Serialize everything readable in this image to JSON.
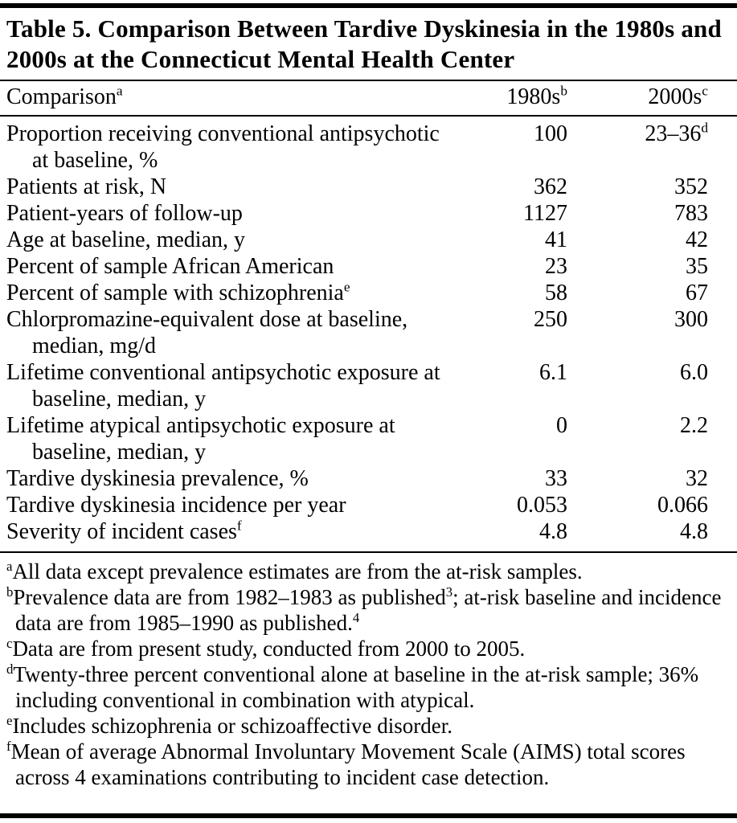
{
  "colors": {
    "text": "#000000",
    "background": "#ffffff",
    "rules": "#000000"
  },
  "table": {
    "title": "Table 5. Comparison Between Tardive Dyskinesia in the 1980s and 2000s at the Connecticut Mental Health Center",
    "columns": {
      "comparison": {
        "label": "Comparison",
        "sup": "a"
      },
      "col1": {
        "label": "1980s",
        "sup": "b"
      },
      "col2": {
        "label": "2000s",
        "sup": "c"
      }
    },
    "rows": [
      {
        "label": "Proportion receiving conventional antipsychotic at baseline, %",
        "sup": "",
        "v1": "100",
        "v1_sup": "",
        "v2": "23–36",
        "v2_sup": "d"
      },
      {
        "label": "Patients at risk, N",
        "sup": "",
        "v1": "362",
        "v1_sup": "",
        "v2": "352",
        "v2_sup": ""
      },
      {
        "label": "Patient-years of follow-up",
        "sup": "",
        "v1": "1127",
        "v1_sup": "",
        "v2": "783",
        "v2_sup": ""
      },
      {
        "label": "Age at baseline, median, y",
        "sup": "",
        "v1": "41",
        "v1_sup": "",
        "v2": "42",
        "v2_sup": ""
      },
      {
        "label": "Percent of sample African American",
        "sup": "",
        "v1": "23",
        "v1_sup": "",
        "v2": "35",
        "v2_sup": ""
      },
      {
        "label": "Percent of sample with schizophrenia",
        "sup": "e",
        "v1": "58",
        "v1_sup": "",
        "v2": "67",
        "v2_sup": ""
      },
      {
        "label": "Chlorpromazine-equivalent dose at baseline, median, mg/d",
        "sup": "",
        "v1": "250",
        "v1_sup": "",
        "v2": "300",
        "v2_sup": ""
      },
      {
        "label": "Lifetime conventional antipsychotic exposure at baseline, median, y",
        "sup": "",
        "v1": "6.1",
        "v1_sup": "",
        "v2": "6.0",
        "v2_sup": ""
      },
      {
        "label": "Lifetime atypical antipsychotic exposure at baseline, median, y",
        "sup": "",
        "v1": "0",
        "v1_sup": "",
        "v2": "2.2",
        "v2_sup": ""
      },
      {
        "label": "Tardive dyskinesia prevalence, %",
        "sup": "",
        "v1": "33",
        "v1_sup": "",
        "v2": "32",
        "v2_sup": ""
      },
      {
        "label": "Tardive dyskinesia incidence per year",
        "sup": "",
        "v1": "0.053",
        "v1_sup": "",
        "v2": "0.066",
        "v2_sup": ""
      },
      {
        "label": "Severity of incident cases",
        "sup": "f",
        "v1": "4.8",
        "v1_sup": "",
        "v2": "4.8",
        "v2_sup": ""
      }
    ],
    "footnotes": [
      {
        "marker": "a",
        "segments": [
          {
            "type": "text",
            "value": "All data except prevalence estimates are from the at-risk samples."
          }
        ]
      },
      {
        "marker": "b",
        "segments": [
          {
            "type": "text",
            "value": "Prevalence data are from 1982–1983 as published"
          },
          {
            "type": "sup",
            "value": "3"
          },
          {
            "type": "text",
            "value": "; at-risk baseline and incidence data are from 1985–1990 as published."
          },
          {
            "type": "sup",
            "value": "4"
          }
        ]
      },
      {
        "marker": "c",
        "segments": [
          {
            "type": "text",
            "value": "Data are from present study, conducted from 2000 to 2005."
          }
        ]
      },
      {
        "marker": "d",
        "segments": [
          {
            "type": "text",
            "value": "Twenty-three percent conventional alone at baseline in the at-risk sample; 36% including conventional in combination with atypical."
          }
        ]
      },
      {
        "marker": "e",
        "segments": [
          {
            "type": "text",
            "value": "Includes schizophrenia or schizoaffective disorder."
          }
        ]
      },
      {
        "marker": "f",
        "segments": [
          {
            "type": "text",
            "value": "Mean of average Abnormal Involuntary Movement Scale (AIMS) total scores across 4 examinations contributing to incident case detection."
          }
        ]
      }
    ]
  }
}
